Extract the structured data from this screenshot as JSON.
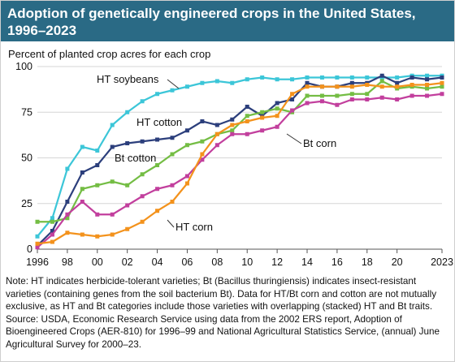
{
  "title": "Adoption of genetically engineered crops in the United States, 1996–2023",
  "subtitle": "Percent of planted crop acres for each crop",
  "notes": {
    "note": "Note: HT indicates herbicide-tolerant varieties; Bt (Bacillus thuringiensis) indicates insect-resistant varieties (containing genes from the soil bacterium Bt). Data for HT/Bt corn and cotton are not mutually exclusive, as HT and Bt categories include those varieties with overlapping (stacked) HT and Bt traits.",
    "source": "Source: USDA, Economic Research Service using data from the 2002 ERS report, Adoption of Bioengineered Crops (AER-810) for 1996–99 and National Agricultural Statistics Service, (annual) June Agricultural Survey for 2000–23."
  },
  "chart_data": {
    "type": "line",
    "title": "Adoption of genetically engineered crops in the United States, 1996–2023",
    "ylabel": "Percent of planted crop acres for each crop",
    "xlabel": "",
    "x": [
      1996,
      1997,
      1998,
      1999,
      2000,
      2001,
      2002,
      2003,
      2004,
      2005,
      2006,
      2007,
      2008,
      2009,
      2010,
      2011,
      2012,
      2013,
      2014,
      2015,
      2016,
      2017,
      2018,
      2019,
      2020,
      2021,
      2022,
      2023
    ],
    "xticks": [
      1996,
      1998,
      2000,
      2002,
      2004,
      2006,
      2008,
      2010,
      2012,
      2014,
      2016,
      2018,
      2020,
      2023
    ],
    "xtick_labels": [
      "1996",
      "98",
      "00",
      "02",
      "04",
      "06",
      "08",
      "10",
      "12",
      "14",
      "16",
      "18",
      "20",
      "2023"
    ],
    "xlim": [
      1996,
      2023
    ],
    "ylim": [
      0,
      100
    ],
    "yticks": [
      0,
      25,
      50,
      75,
      100
    ],
    "grid": "horizontal",
    "legend": "inline labels",
    "series": [
      {
        "name": "HT soybeans",
        "color": "#3cc6d8",
        "values": [
          7,
          17,
          44,
          56,
          54,
          68,
          75,
          81,
          85,
          87,
          89,
          91,
          92,
          91,
          93,
          94,
          93,
          93,
          94,
          94,
          94,
          94,
          94,
          94,
          94,
          95,
          95,
          95
        ]
      },
      {
        "name": "HT cotton",
        "color": "#2c3f7c",
        "values": [
          2,
          10,
          26,
          42,
          46,
          56,
          58,
          59,
          60,
          61,
          65,
          70,
          68,
          71,
          78,
          73,
          80,
          82,
          91,
          89,
          89,
          91,
          91,
          95,
          91,
          94,
          93,
          94
        ]
      },
      {
        "name": "Bt cotton",
        "color": "#74bd44",
        "values": [
          15,
          15,
          17,
          33,
          35,
          37,
          35,
          41,
          46,
          52,
          57,
          59,
          63,
          65,
          73,
          75,
          77,
          75,
          84,
          84,
          84,
          85,
          85,
          92,
          88,
          89,
          88,
          89
        ]
      },
      {
        "name": "Bt corn",
        "color": "#c23f9d",
        "values": [
          1,
          8,
          19,
          26,
          19,
          19,
          24,
          29,
          33,
          35,
          40,
          49,
          57,
          63,
          63,
          65,
          67,
          76,
          80,
          81,
          79,
          82,
          82,
          83,
          82,
          84,
          84,
          85
        ]
      },
      {
        "name": "HT corn",
        "color": "#f3921c",
        "values": [
          3,
          4,
          9,
          8,
          7,
          8,
          11,
          15,
          21,
          26,
          36,
          52,
          63,
          68,
          70,
          72,
          73,
          85,
          89,
          89,
          89,
          89,
          90,
          89,
          89,
          90,
          90,
          91
        ]
      }
    ]
  }
}
